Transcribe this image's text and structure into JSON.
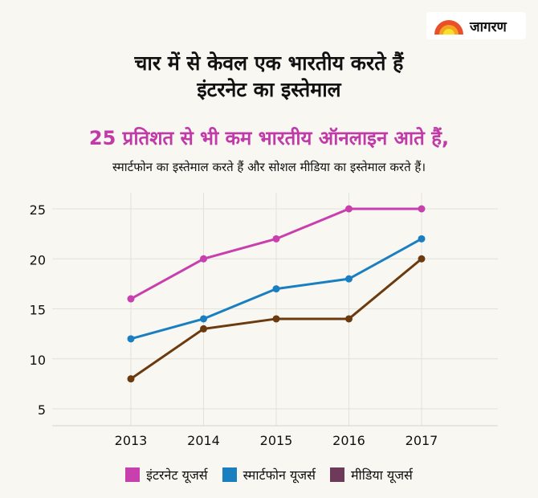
{
  "logo": {
    "text": "जागरण"
  },
  "title": [
    "चार में से केवल एक भारतीय करते हैं",
    "इंटरनेट का इस्तेमाल"
  ],
  "subtitle": "25 प्रतिशत से भी कम भारतीय ऑनलाइन आते हैं,",
  "subtitle2": "स्मार्टफोन का इस्तेमाल करते हैं और सोशल मीडिया का इस्तेमाल करते हैं।",
  "chart_data": {
    "type": "line",
    "x": [
      2013,
      2014,
      2015,
      2016,
      2017
    ],
    "xticks": [
      "2013",
      "2014",
      "2015",
      "2016",
      "2017"
    ],
    "yticks": [
      "5",
      "10",
      "15",
      "20",
      "25"
    ],
    "ylim": [
      3,
      26.5
    ],
    "grid": true,
    "legend_position": "bottom",
    "series": [
      {
        "name": "इंटरनेट यूजर्स",
        "color": "#c83fae",
        "values": [
          16,
          20,
          22,
          25,
          25
        ]
      },
      {
        "name": "स्मार्टफोन यूजर्स",
        "color": "#1a7fc1",
        "values": [
          12,
          14,
          17,
          18,
          22
        ]
      },
      {
        "name": "मीडिया यूजर्स",
        "color": "#6b3a0f",
        "legend_color": "#6e3a5a",
        "values": [
          8,
          13,
          14,
          14,
          20
        ]
      }
    ]
  }
}
